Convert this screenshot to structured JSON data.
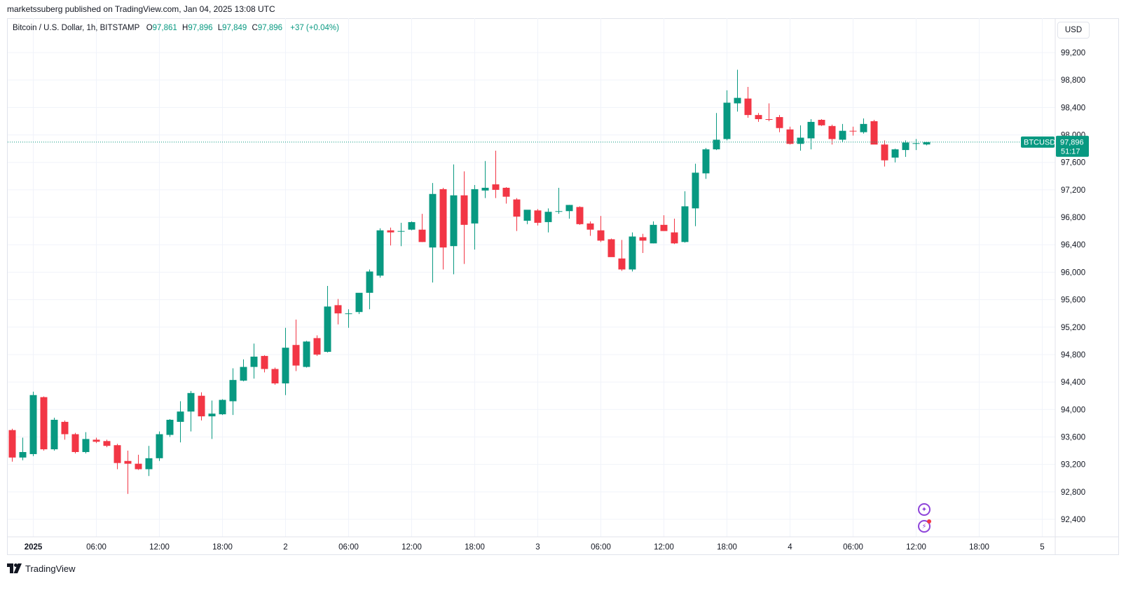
{
  "header": {
    "publisher_text": "marketssuberg published on TradingView.com, Jan 04, 2025 13:08 UTC"
  },
  "legend": {
    "symbol": "Bitcoin / U.S. Dollar, 1h, BITSTAMP",
    "o_label": "O",
    "o_value": "97,861",
    "h_label": "H",
    "h_value": "97,896",
    "l_label": "L",
    "l_value": "97,849",
    "c_label": "C",
    "c_value": "97,896",
    "change": "+37 (+0.04%)"
  },
  "currency_button": "USD",
  "price_tag": {
    "symbol": "BTCUSD",
    "price": "97,896",
    "countdown": "51:17"
  },
  "footer": {
    "brand": "TradingView"
  },
  "icons": [
    "ai-assistant-icon",
    "lightning-alert-icon",
    "tradingview-logo-icon"
  ],
  "colors": {
    "up": "#089981",
    "down": "#f23645",
    "grid": "#f0f3fa",
    "axis_text": "#131722"
  },
  "chart_data": {
    "type": "candlestick",
    "title": "Bitcoin / U.S. Dollar, 1h, BITSTAMP",
    "ylim": [
      92100,
      99400
    ],
    "y_ticks": [
      92400,
      92800,
      93200,
      93600,
      94000,
      94400,
      94800,
      95200,
      95600,
      96000,
      96400,
      96800,
      97200,
      97600,
      98000,
      98400,
      98800,
      99200
    ],
    "y_tick_labels": [
      "92,400",
      "92,800",
      "93,200",
      "93,600",
      "94,000",
      "94,400",
      "94,800",
      "95,200",
      "95,600",
      "96,000",
      "96,400",
      "96,800",
      "97,200",
      "97,600",
      "98,000",
      "98,400",
      "98,800",
      "99,200"
    ],
    "x_ticks": [
      {
        "index": 2,
        "label": "2025",
        "bold": true
      },
      {
        "index": 8,
        "label": "06:00"
      },
      {
        "index": 14,
        "label": "12:00"
      },
      {
        "index": 20,
        "label": "18:00"
      },
      {
        "index": 26,
        "label": "2"
      },
      {
        "index": 32,
        "label": "06:00"
      },
      {
        "index": 38,
        "label": "12:00"
      },
      {
        "index": 44,
        "label": "18:00"
      },
      {
        "index": 50,
        "label": "3"
      },
      {
        "index": 56,
        "label": "06:00"
      },
      {
        "index": 62,
        "label": "12:00"
      },
      {
        "index": 68,
        "label": "18:00"
      },
      {
        "index": 74,
        "label": "4"
      },
      {
        "index": 80,
        "label": "06:00"
      },
      {
        "index": 86,
        "label": "12:00"
      },
      {
        "index": 92,
        "label": "18:00"
      },
      {
        "index": 98,
        "label": "5"
      }
    ],
    "last_price": 97896,
    "candles": [
      {
        "o": 93700,
        "h": 93720,
        "l": 93240,
        "c": 93300
      },
      {
        "o": 93300,
        "h": 93590,
        "l": 93260,
        "c": 93380
      },
      {
        "o": 93350,
        "h": 94260,
        "l": 93320,
        "c": 94210
      },
      {
        "o": 94180,
        "h": 94190,
        "l": 93400,
        "c": 93420
      },
      {
        "o": 93420,
        "h": 93880,
        "l": 93400,
        "c": 93850
      },
      {
        "o": 93820,
        "h": 93840,
        "l": 93560,
        "c": 93640
      },
      {
        "o": 93640,
        "h": 93660,
        "l": 93360,
        "c": 93380
      },
      {
        "o": 93380,
        "h": 93670,
        "l": 93360,
        "c": 93570
      },
      {
        "o": 93560,
        "h": 93590,
        "l": 93510,
        "c": 93530
      },
      {
        "o": 93540,
        "h": 93560,
        "l": 93450,
        "c": 93470
      },
      {
        "o": 93480,
        "h": 93500,
        "l": 93130,
        "c": 93220
      },
      {
        "o": 93250,
        "h": 93400,
        "l": 92770,
        "c": 93210
      },
      {
        "o": 93210,
        "h": 93340,
        "l": 93120,
        "c": 93130
      },
      {
        "o": 93130,
        "h": 93470,
        "l": 93030,
        "c": 93290
      },
      {
        "o": 93290,
        "h": 93680,
        "l": 93250,
        "c": 93640
      },
      {
        "o": 93630,
        "h": 93860,
        "l": 93600,
        "c": 93850
      },
      {
        "o": 93820,
        "h": 94120,
        "l": 93520,
        "c": 93970
      },
      {
        "o": 93970,
        "h": 94270,
        "l": 93680,
        "c": 94240
      },
      {
        "o": 94200,
        "h": 94250,
        "l": 93840,
        "c": 93900
      },
      {
        "o": 93900,
        "h": 94130,
        "l": 93570,
        "c": 93940
      },
      {
        "o": 93930,
        "h": 94150,
        "l": 93920,
        "c": 94140
      },
      {
        "o": 94120,
        "h": 94600,
        "l": 93920,
        "c": 94430
      },
      {
        "o": 94420,
        "h": 94730,
        "l": 94410,
        "c": 94620
      },
      {
        "o": 94620,
        "h": 94960,
        "l": 94450,
        "c": 94770
      },
      {
        "o": 94780,
        "h": 94790,
        "l": 94540,
        "c": 94590
      },
      {
        "o": 94590,
        "h": 94610,
        "l": 94360,
        "c": 94380
      },
      {
        "o": 94380,
        "h": 95190,
        "l": 94210,
        "c": 94900
      },
      {
        "o": 94940,
        "h": 95310,
        "l": 94560,
        "c": 94640
      },
      {
        "o": 94620,
        "h": 95000,
        "l": 94610,
        "c": 94990
      },
      {
        "o": 95040,
        "h": 95080,
        "l": 94780,
        "c": 94800
      },
      {
        "o": 94840,
        "h": 95800,
        "l": 94830,
        "c": 95500
      },
      {
        "o": 95520,
        "h": 95610,
        "l": 95240,
        "c": 95400
      },
      {
        "o": 95400,
        "h": 95460,
        "l": 95190,
        "c": 95400
      },
      {
        "o": 95420,
        "h": 95690,
        "l": 95390,
        "c": 95700
      },
      {
        "o": 95700,
        "h": 96040,
        "l": 95460,
        "c": 96010
      },
      {
        "o": 95950,
        "h": 96640,
        "l": 95920,
        "c": 96610
      },
      {
        "o": 96610,
        "h": 96650,
        "l": 96390,
        "c": 96580
      },
      {
        "o": 96600,
        "h": 96720,
        "l": 96380,
        "c": 96600
      },
      {
        "o": 96620,
        "h": 96740,
        "l": 96610,
        "c": 96730
      },
      {
        "o": 96620,
        "h": 96850,
        "l": 96440,
        "c": 96440
      },
      {
        "o": 96360,
        "h": 97300,
        "l": 95850,
        "c": 97140
      },
      {
        "o": 97210,
        "h": 97230,
        "l": 96040,
        "c": 96360
      },
      {
        "o": 96380,
        "h": 97570,
        "l": 95970,
        "c": 97120
      },
      {
        "o": 97120,
        "h": 97470,
        "l": 96120,
        "c": 96690
      },
      {
        "o": 96710,
        "h": 97270,
        "l": 96330,
        "c": 97210
      },
      {
        "o": 97190,
        "h": 97620,
        "l": 97080,
        "c": 97230
      },
      {
        "o": 97280,
        "h": 97770,
        "l": 97080,
        "c": 97200
      },
      {
        "o": 97230,
        "h": 97240,
        "l": 97000,
        "c": 97100
      },
      {
        "o": 97060,
        "h": 97080,
        "l": 96600,
        "c": 96810
      },
      {
        "o": 96750,
        "h": 96870,
        "l": 96700,
        "c": 96910
      },
      {
        "o": 96900,
        "h": 96920,
        "l": 96680,
        "c": 96720
      },
      {
        "o": 96730,
        "h": 96930,
        "l": 96580,
        "c": 96880
      },
      {
        "o": 96890,
        "h": 97230,
        "l": 96850,
        "c": 96890
      },
      {
        "o": 96890,
        "h": 96980,
        "l": 96780,
        "c": 96980
      },
      {
        "o": 96950,
        "h": 96960,
        "l": 96690,
        "c": 96700
      },
      {
        "o": 96710,
        "h": 96740,
        "l": 96530,
        "c": 96620
      },
      {
        "o": 96610,
        "h": 96820,
        "l": 96440,
        "c": 96460
      },
      {
        "o": 96480,
        "h": 96490,
        "l": 96230,
        "c": 96220
      },
      {
        "o": 96200,
        "h": 96470,
        "l": 96020,
        "c": 96040
      },
      {
        "o": 96040,
        "h": 96580,
        "l": 96010,
        "c": 96520
      },
      {
        "o": 96510,
        "h": 96560,
        "l": 96280,
        "c": 96460
      },
      {
        "o": 96420,
        "h": 96740,
        "l": 96420,
        "c": 96690
      },
      {
        "o": 96690,
        "h": 96830,
        "l": 96600,
        "c": 96600
      },
      {
        "o": 96580,
        "h": 96780,
        "l": 96410,
        "c": 96420
      },
      {
        "o": 96440,
        "h": 97180,
        "l": 96430,
        "c": 96960
      },
      {
        "o": 96930,
        "h": 97580,
        "l": 96670,
        "c": 97450
      },
      {
        "o": 97440,
        "h": 97810,
        "l": 97360,
        "c": 97790
      },
      {
        "o": 97790,
        "h": 98320,
        "l": 97780,
        "c": 97930
      },
      {
        "o": 97940,
        "h": 98650,
        "l": 97920,
        "c": 98470
      },
      {
        "o": 98460,
        "h": 98950,
        "l": 98340,
        "c": 98540
      },
      {
        "o": 98530,
        "h": 98700,
        "l": 98250,
        "c": 98290
      },
      {
        "o": 98290,
        "h": 98320,
        "l": 98190,
        "c": 98230
      },
      {
        "o": 98230,
        "h": 98460,
        "l": 98200,
        "c": 98220
      },
      {
        "o": 98260,
        "h": 98290,
        "l": 98040,
        "c": 98100
      },
      {
        "o": 98080,
        "h": 98120,
        "l": 97860,
        "c": 97870
      },
      {
        "o": 97870,
        "h": 98140,
        "l": 97770,
        "c": 97960
      },
      {
        "o": 97950,
        "h": 98230,
        "l": 97790,
        "c": 98190
      },
      {
        "o": 98220,
        "h": 98230,
        "l": 98130,
        "c": 98140
      },
      {
        "o": 98130,
        "h": 98150,
        "l": 97860,
        "c": 97940
      },
      {
        "o": 97930,
        "h": 98160,
        "l": 97900,
        "c": 98060
      },
      {
        "o": 98060,
        "h": 98120,
        "l": 97990,
        "c": 98050
      },
      {
        "o": 98040,
        "h": 98240,
        "l": 98020,
        "c": 98160
      },
      {
        "o": 98200,
        "h": 98220,
        "l": 97890,
        "c": 97860
      },
      {
        "o": 97860,
        "h": 97920,
        "l": 97540,
        "c": 97630
      },
      {
        "o": 97670,
        "h": 97800,
        "l": 97600,
        "c": 97790
      },
      {
        "o": 97780,
        "h": 97920,
        "l": 97680,
        "c": 97890
      },
      {
        "o": 97870,
        "h": 97940,
        "l": 97780,
        "c": 97880
      },
      {
        "o": 97861,
        "h": 97896,
        "l": 97849,
        "c": 97896
      }
    ]
  }
}
